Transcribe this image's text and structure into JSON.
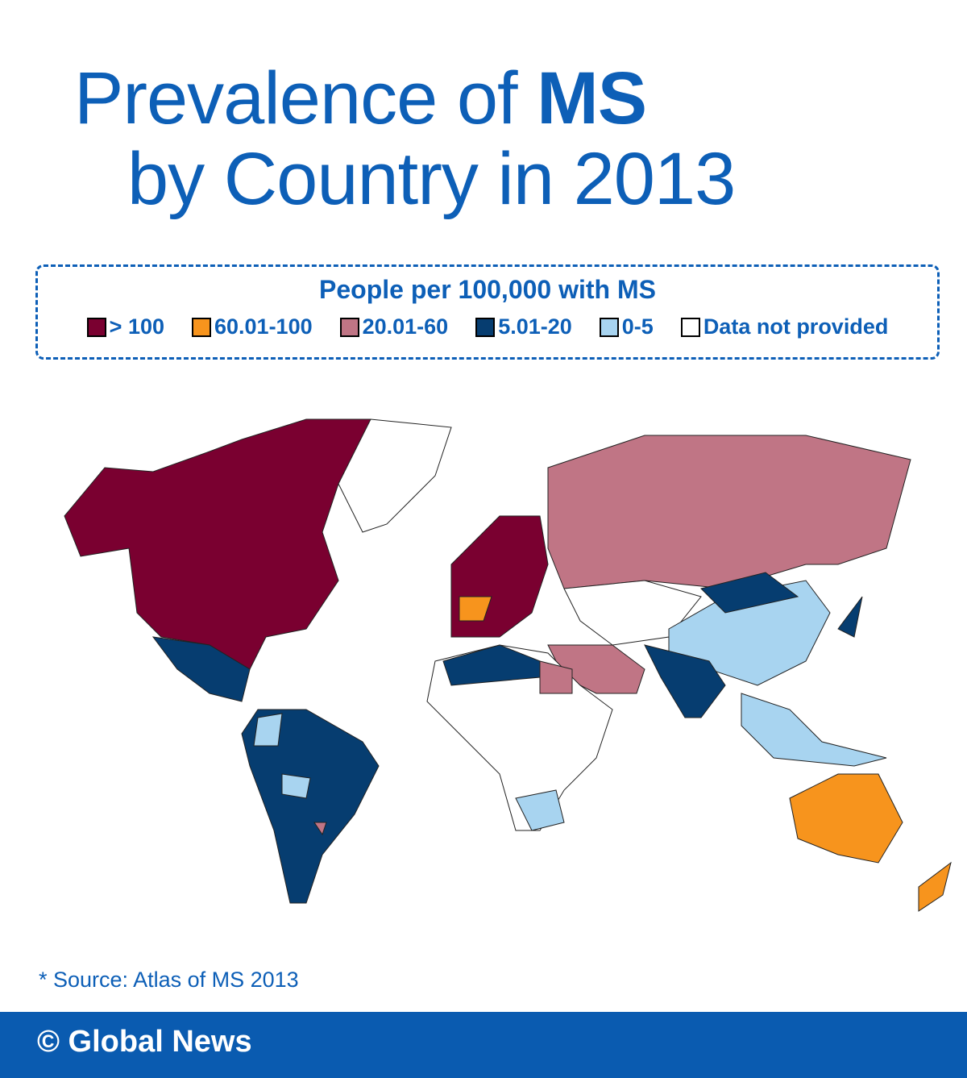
{
  "title": {
    "line1": "Prevalence of",
    "bold": "MS",
    "line2": "by Country in 2013"
  },
  "legend": {
    "title": "People per 100,000 with MS",
    "items": [
      {
        "label": "> 100",
        "color": "#7a0030"
      },
      {
        "label": "60.01-100",
        "color": "#f7941d"
      },
      {
        "label": "20.01-60",
        "color": "#c07585"
      },
      {
        "label": "5.01-20",
        "color": "#063d70"
      },
      {
        "label": "0-5",
        "color": "#a8d4f0"
      },
      {
        "label": "Data not provided",
        "color": "#ffffff"
      }
    ]
  },
  "source": "* Source: Atlas of MS 2013",
  "footer": "© Global News"
}
